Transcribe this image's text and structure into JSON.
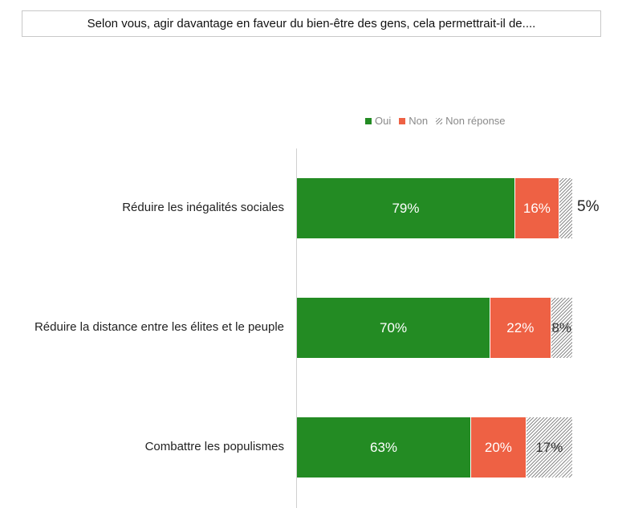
{
  "title": "Selon vous, agir davantage en faveur du bien-être des gens, cela permettrait-il de....",
  "legend": [
    {
      "label": "Oui",
      "color": "#238b23"
    },
    {
      "label": "Non",
      "color": "#ee6144"
    },
    {
      "label": "Non réponse",
      "color": "hatched-grey"
    }
  ],
  "chart_data": {
    "type": "bar",
    "orientation": "horizontal",
    "stacked": true,
    "title": "Selon vous, agir davantage en faveur du bien-être des gens, cela permettrait-il de....",
    "categories": [
      "Réduire les inégalités sociales",
      "Réduire la distance entre les élites et le peuple",
      "Combattre les populismes"
    ],
    "series": [
      {
        "name": "Oui",
        "values": [
          79,
          70,
          63
        ],
        "labels": [
          "79%",
          "70%",
          "63%"
        ],
        "color": "#238b23"
      },
      {
        "name": "Non",
        "values": [
          16,
          22,
          20
        ],
        "labels": [
          "16%",
          "22%",
          "20%"
        ],
        "color": "#ee6144"
      },
      {
        "name": "Non réponse",
        "values": [
          5,
          8,
          17
        ],
        "labels": [
          "5%",
          "8%",
          "17%"
        ],
        "color": "#9a9a9a"
      }
    ],
    "xlim": [
      0,
      100
    ],
    "unit": "%",
    "legend_position": "top-right",
    "grid": false
  }
}
